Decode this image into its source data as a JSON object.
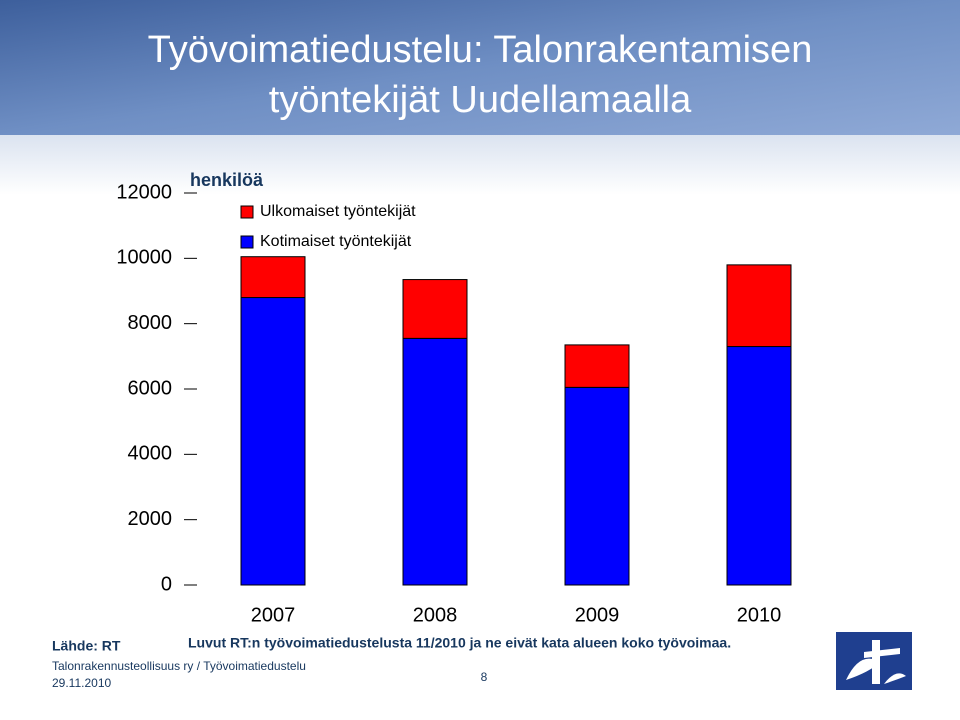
{
  "slide": {
    "title_lines": [
      "Työvoimatiedustelu: Talonrakentamisen",
      "työntekijät Uudellamaalla"
    ],
    "source": "Lähde: RT",
    "note": "Luvut RT:n työvoimatiedustelusta 11/2010 ja ne eivät kata alueen koko työvoimaa.",
    "footer": "Talonrakennusteollisuus ry / Työvoimatiedustelu",
    "date": "29.11.2010",
    "page": "8"
  },
  "chart_data": {
    "type": "bar",
    "stacked": true,
    "y_label": "henkilöä",
    "categories": [
      "2007",
      "2008",
      "2009",
      "2010"
    ],
    "series": [
      {
        "name": "Kotimaiset työntekijät",
        "color": "#0000ff",
        "values": [
          8800,
          7550,
          6050,
          7300
        ]
      },
      {
        "name": "Ulkomaiset työntekijät",
        "color": "#ff0000",
        "values": [
          1250,
          1800,
          1300,
          2500
        ]
      }
    ],
    "ylim": [
      0,
      12000
    ],
    "yticks": [
      0,
      2000,
      4000,
      6000,
      8000,
      10000,
      12000
    ],
    "legend": "top-left"
  }
}
